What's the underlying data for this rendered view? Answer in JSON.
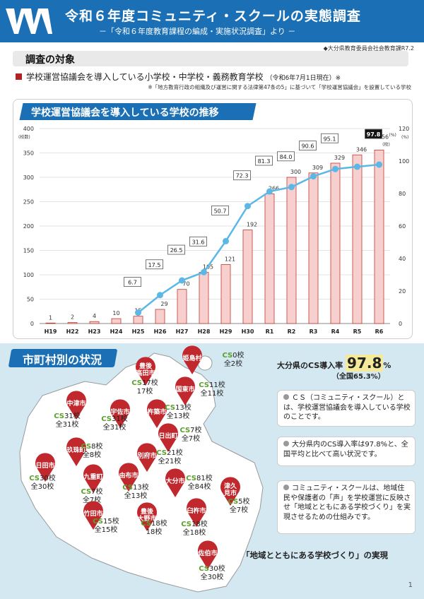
{
  "header": {
    "title": "令和６年度コミュニティ・スクールの実態調査",
    "subtitle": "－「令和６年度教育課程の編成・実施状況調査」より －",
    "credit": "◆大分県教育委員会社会教育課R7.2"
  },
  "target": {
    "heading": "調査の対象",
    "line": "学校運営協議会を導入している小学校・中学校・義務教育学校",
    "date": "（令和6年7月1日現在）※",
    "note": "※「地方教育行政の組織及び運営に関する法律第47条の5」に基づいて「学校運営協議会」を設置している学校"
  },
  "chart_title": "学校運営協議会を導入している学校の推移",
  "chart_data": {
    "type": "bar",
    "categories": [
      "H19",
      "H22",
      "H23",
      "H24",
      "H25",
      "H26",
      "H27",
      "H28",
      "H29",
      "H30",
      "R1",
      "R2",
      "R3",
      "R4",
      "R5",
      "R6"
    ],
    "series": [
      {
        "values": [
          1,
          2,
          4,
          10,
          15,
          29,
          70,
          105,
          121,
          192,
          266,
          300,
          309,
          329,
          346,
          356
        ]
      },
      {
        "type": "line",
        "values": [
          null,
          null,
          null,
          null,
          6.7,
          17.5,
          26.5,
          31.6,
          50.7,
          72.3,
          81.3,
          84.0,
          90.6,
          95.1,
          null,
          97.8
        ]
      }
    ],
    "line_labels": [
      "",
      "",
      "",
      "",
      "6.7",
      "17.5",
      "26.5",
      "31.6",
      "50.7",
      "72.3",
      "81.3",
      "84.0",
      "90.6",
      "95.1",
      "",
      "97.8"
    ],
    "bar_labels": [
      "1",
      "2",
      "4",
      "10",
      "15",
      "29",
      "70",
      "105",
      "121",
      "192",
      "266",
      "300",
      "309",
      "329",
      "346",
      "356"
    ],
    "y_left_ticks": [
      "0",
      "50",
      "100",
      "150",
      "200",
      "250",
      "300",
      "350",
      "400"
    ],
    "y_right_ticks": [
      "0",
      "20",
      "40",
      "60",
      "80",
      "100",
      "120"
    ],
    "y_left_unit": "(校数)",
    "y_right_unit": "(%)",
    "ylim": [
      0,
      400
    ],
    "y2lim": [
      0,
      120
    ],
    "last_unit": "(校)",
    "last_pct_unit": "(%)"
  },
  "city": {
    "heading": "市町村別の状況",
    "rate_label": "大分県のCS導入率",
    "rate_value": "97.8",
    "rate_unit": "%",
    "national": "（全国65.3%）",
    "points": [
      "ＣＳ（コミュニティ・スクール）とは、学校運営協議会を導入している学校のことです。",
      "大分県内のCS導入率は97.8%と、全国平均と比べて高い状況です。",
      "コミュニティ・スクールは、地域住民や保護者の「声」を学校運営に反映させ「地域とともにある学校づくり」を実現させるための仕組みです。"
    ],
    "motto": "「地域とともにある学校づくり」の実現",
    "page": "1",
    "municipalities": [
      {
        "name": "姫島村",
        "cs": "CS0校",
        "all": "全2校"
      },
      {
        "name": "豊後高田市",
        "cs": "CS17校",
        "all": "17校"
      },
      {
        "name": "国東市",
        "cs": "CS11校",
        "all": "全11校"
      },
      {
        "name": "中津市",
        "cs": "CS31校",
        "all": "全31校"
      },
      {
        "name": "宇佐市",
        "cs": "CS31校",
        "all": "全31校"
      },
      {
        "name": "杵築市",
        "cs": "CS13校",
        "all": "全13校"
      },
      {
        "name": "日出町",
        "cs": "CS7校",
        "all": "全7校"
      },
      {
        "name": "玖珠町",
        "cs": "CS8校",
        "all": "全8校"
      },
      {
        "name": "別府市",
        "cs": "CS21校",
        "all": "全21校"
      },
      {
        "name": "日田市",
        "cs": "CS30校",
        "all": "全30校"
      },
      {
        "name": "九重町",
        "cs": "CS7校",
        "all": "全7校"
      },
      {
        "name": "由布市",
        "cs": "CS13校",
        "all": "全13校"
      },
      {
        "name": "大分市",
        "cs": "CS81校",
        "all": "全84校"
      },
      {
        "name": "津久見市",
        "cs": "CS5校",
        "all": "全7校"
      },
      {
        "name": "竹田市",
        "cs": "CS15校",
        "all": "全15校"
      },
      {
        "name": "豊後大野市",
        "cs": "CS18校",
        "all": "18校"
      },
      {
        "name": "臼杵市",
        "cs": "CS18校",
        "all": "全18校"
      },
      {
        "name": "佐伯市",
        "cs": "CS30校",
        "all": "全30校"
      }
    ]
  }
}
